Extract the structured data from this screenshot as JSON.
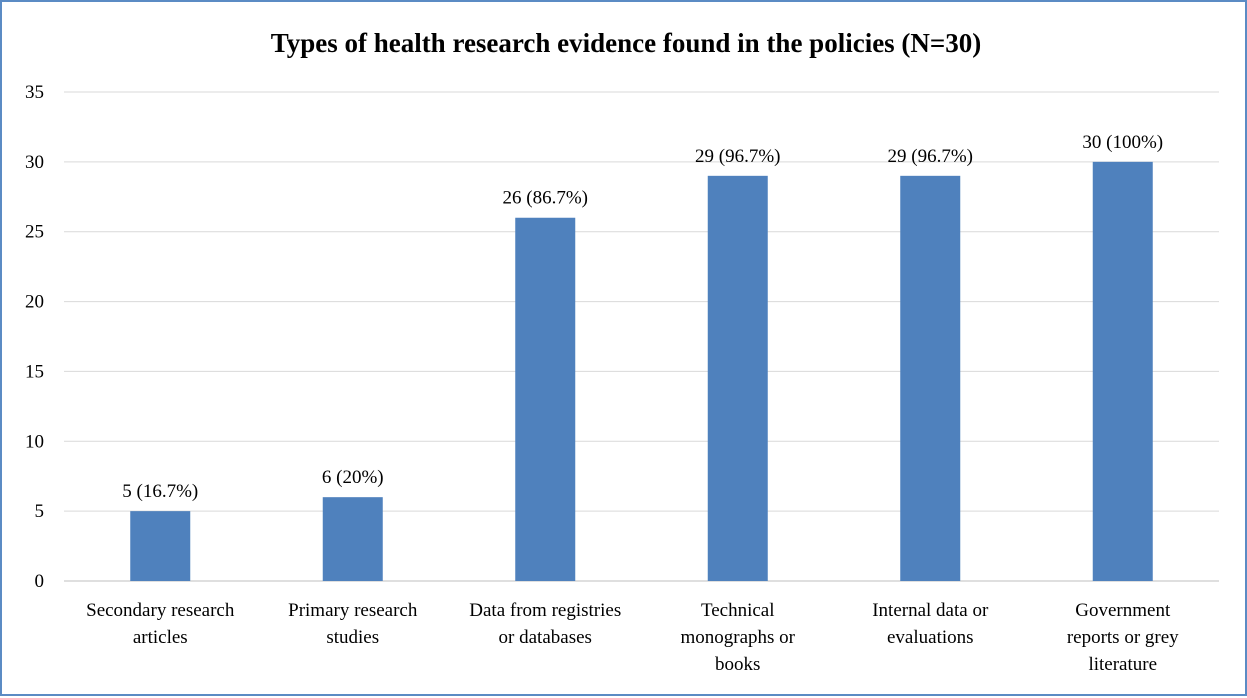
{
  "chart_data": {
    "type": "bar",
    "title": "Types of health research evidence found in the policies (N=30)",
    "xlabel": "",
    "ylabel": "",
    "ylim": [
      0,
      35
    ],
    "yticks": [
      "0",
      "5",
      "10",
      "15",
      "20",
      "25",
      "30",
      "35"
    ],
    "grid": true,
    "legend": "none",
    "bar_color": "#4f81bd",
    "categories": [
      "Secondary research articles",
      "Primary research studies",
      "Data from registries or databases",
      "Technical monographs or books",
      "Internal data or evaluations",
      "Government reports or grey literature"
    ],
    "category_lines": [
      [
        "Secondary research",
        "articles"
      ],
      [
        "Primary research",
        "studies"
      ],
      [
        "Data from registries",
        "or databases"
      ],
      [
        "Technical",
        "monographs or",
        "books"
      ],
      [
        "Internal data or",
        "evaluations"
      ],
      [
        "Government",
        "reports or grey",
        "literature"
      ]
    ],
    "values": [
      5,
      6,
      26,
      29,
      29,
      30
    ],
    "data_labels": [
      "5 (16.7%)",
      "6 (20%)",
      "26 (86.7%)",
      "29 (96.7%)",
      "29 (96.7%)",
      "30 (100%)"
    ]
  }
}
